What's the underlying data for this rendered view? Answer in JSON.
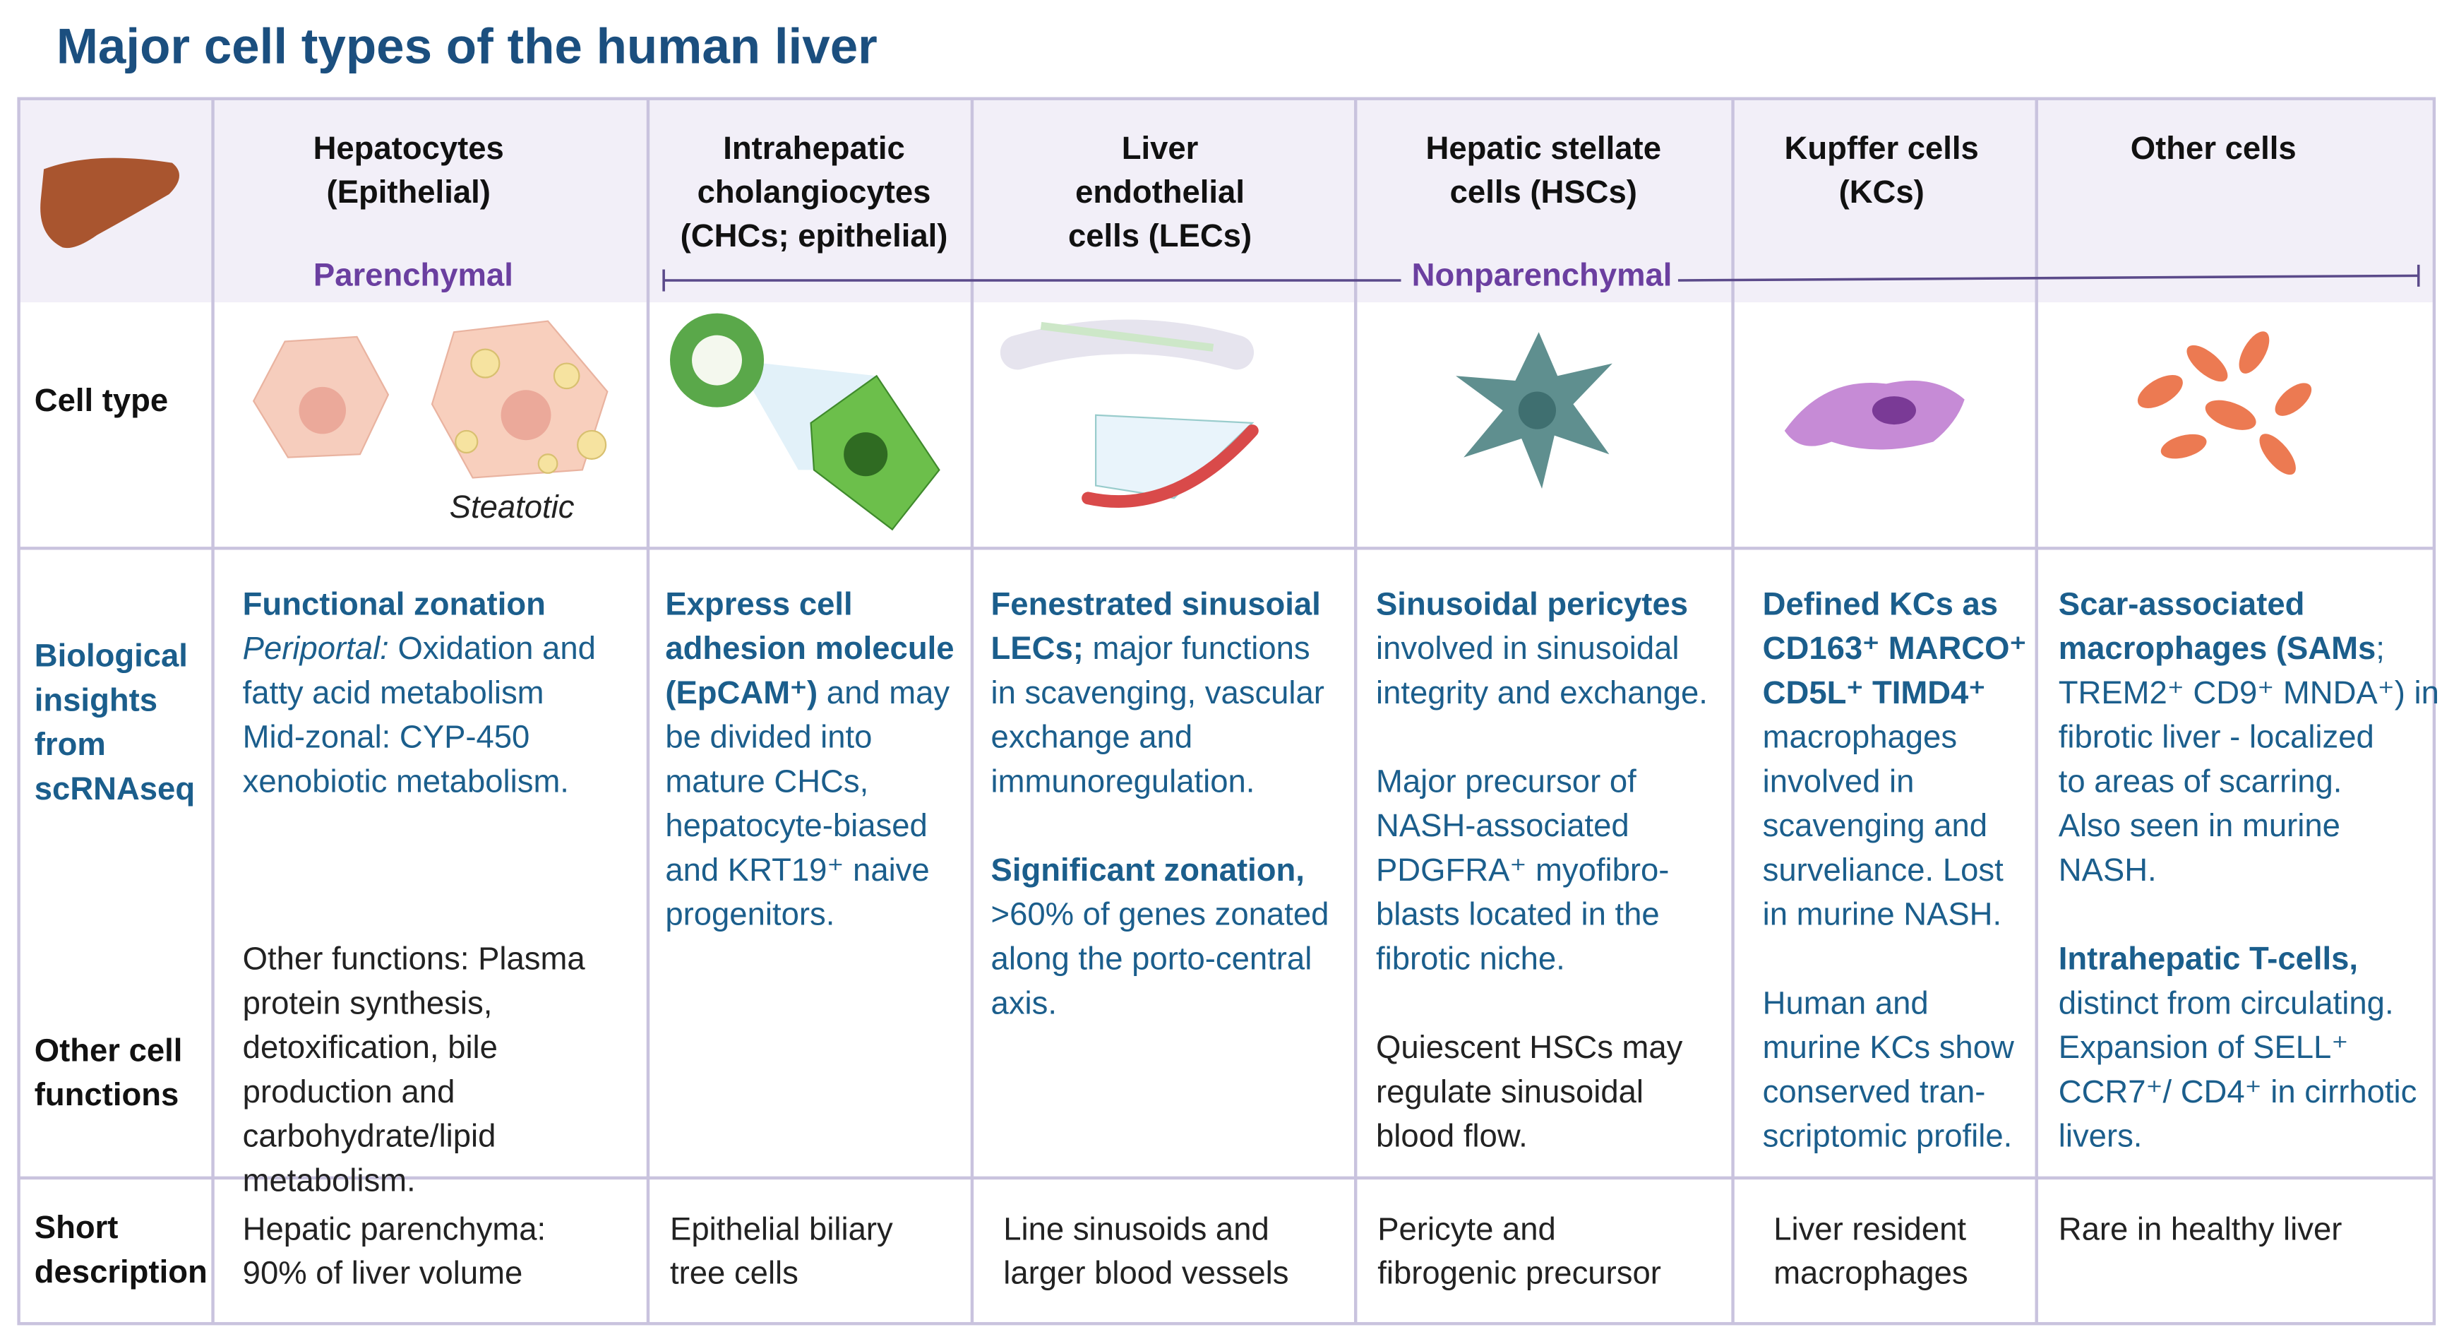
{
  "title": "Major cell types of the human liver",
  "groups": [
    {
      "label": "Parenchymal"
    },
    {
      "label": "Nonparenchymal"
    }
  ],
  "steatotic_label": "Steatotic",
  "rows": [
    {
      "lines": [
        "Cell type"
      ],
      "color": "#111111"
    },
    {
      "lines": [
        "Biological",
        "insights",
        "from",
        "scRNAseq"
      ],
      "color": "#1b5e8c"
    },
    {
      "lines": [
        "Other cell",
        "functions"
      ],
      "color": "#111111"
    },
    {
      "lines": [
        "Short",
        "description"
      ],
      "color": "#111111"
    }
  ],
  "columns": [
    {
      "header": [
        "Hepatocytes",
        "(Epithelial)"
      ],
      "insights": [
        {
          "color": "#1b5e8c",
          "lines": [
            [
              {
                "b": "Functional zonation"
              }
            ],
            [
              {
                "i": "Periportal:"
              },
              " Oxidation and"
            ],
            [
              "fatty acid metabolism"
            ],
            [
              "Mid-zonal: CYP-450"
            ],
            [
              "xenobiotic metabolism."
            ]
          ]
        },
        {
          "color": "#222222",
          "lines": [
            [
              "Other functions: Plasma"
            ],
            [
              "protein synthesis,"
            ],
            [
              "detoxification, bile"
            ],
            [
              "production and"
            ],
            [
              "carbohydrate/lipid"
            ],
            [
              "metabolism."
            ]
          ]
        }
      ],
      "short": [
        "Hepatic parenchyma:",
        "90% of liver volume"
      ]
    },
    {
      "header": [
        "Intrahepatic",
        "cholangiocytes",
        "(CHCs; epithelial)"
      ],
      "insights": [
        {
          "color": "#1b5e8c",
          "lines": [
            [
              {
                "b": "Express cell"
              }
            ],
            [
              {
                "b": "adhesion molecule"
              }
            ],
            [
              {
                "b": "(EpCAM⁺)"
              },
              " and may"
            ],
            [
              "be divided into"
            ],
            [
              "mature CHCs,"
            ],
            [
              "hepatocyte-biased"
            ],
            [
              "and KRT19⁺ naive"
            ],
            [
              "progenitors."
            ]
          ]
        }
      ],
      "short": [
        "Epithelial biliary",
        "tree cells"
      ]
    },
    {
      "header": [
        "Liver",
        "endothelial",
        "cells (LECs)"
      ],
      "insights": [
        {
          "color": "#1b5e8c",
          "lines": [
            [
              {
                "b": "Fenestrated sinusoial"
              }
            ],
            [
              {
                "b": "LECs;"
              },
              " major functions"
            ],
            [
              "in scavenging, vascular"
            ],
            [
              "exchange and"
            ],
            [
              "immunoregulation."
            ]
          ]
        },
        {
          "color": "#1b5e8c",
          "lines": [
            [
              {
                "b": "Significant zonation,"
              }
            ],
            [
              ">60% of genes zonated"
            ],
            [
              "along the porto-central"
            ],
            [
              "axis."
            ]
          ]
        }
      ],
      "short": [
        "Line sinusoids and",
        "larger blood vessels"
      ]
    },
    {
      "header": [
        "Hepatic stellate",
        "cells (HSCs)"
      ],
      "insights": [
        {
          "color": "#1b5e8c",
          "lines": [
            [
              {
                "b": "Sinusoidal pericytes"
              }
            ],
            [
              "involved in sinusoidal"
            ],
            [
              "integrity and exchange."
            ]
          ]
        },
        {
          "color": "#1b5e8c",
          "lines": [
            [
              "Major precursor of"
            ],
            [
              "NASH-associated"
            ],
            [
              "PDGFRA⁺ myofibro-"
            ],
            [
              "blasts located in the"
            ],
            [
              "fibrotic niche."
            ]
          ]
        },
        {
          "color": "#222222",
          "lines": [
            [
              "Quiescent HSCs may"
            ],
            [
              "regulate sinusoidal"
            ],
            [
              "blood flow."
            ]
          ]
        }
      ],
      "short": [
        "Pericyte and",
        "fibrogenic precursor"
      ]
    },
    {
      "header": [
        "Kupffer cells",
        "(KCs)"
      ],
      "insights": [
        {
          "color": "#1b5e8c",
          "lines": [
            [
              {
                "b": "Defined KCs as"
              }
            ],
            [
              {
                "b": "CD163⁺ MARCO⁺"
              }
            ],
            [
              {
                "b": "CD5L⁺ TIMD4⁺"
              }
            ],
            [
              "macrophages"
            ],
            [
              "involved in"
            ],
            [
              "scavenging and"
            ],
            [
              "surveliance. Lost"
            ],
            [
              "in murine NASH."
            ]
          ]
        },
        {
          "color": "#1b5e8c",
          "lines": [
            [
              "Human and"
            ],
            [
              "murine KCs show"
            ],
            [
              "conserved tran-"
            ],
            [
              "scriptomic profile."
            ]
          ]
        }
      ],
      "short": [
        "Liver resident",
        "macrophages"
      ]
    },
    {
      "header": [
        "Other cells"
      ],
      "insights": [
        {
          "color": "#1b5e8c",
          "lines": [
            [
              {
                "b": "Scar-associated"
              }
            ],
            [
              {
                "b": "macrophages (SAMs"
              },
              ";"
            ],
            [
              "TREM2⁺ CD9⁺ MNDA⁺) in"
            ],
            [
              "fibrotic liver - localized"
            ],
            [
              "to areas of scarring."
            ],
            [
              "Also seen in murine"
            ],
            [
              "NASH."
            ]
          ]
        },
        {
          "color": "#1b5e8c",
          "lines": [
            [
              {
                "b": "Intrahepatic T-cells,"
              }
            ],
            [
              "distinct from circulating."
            ],
            [
              "Expansion of SELL⁺"
            ],
            [
              "CCR7⁺/ CD4⁺ in cirrhotic"
            ],
            [
              "livers."
            ]
          ]
        }
      ],
      "short": [
        "Rare in healthy liver"
      ]
    }
  ]
}
